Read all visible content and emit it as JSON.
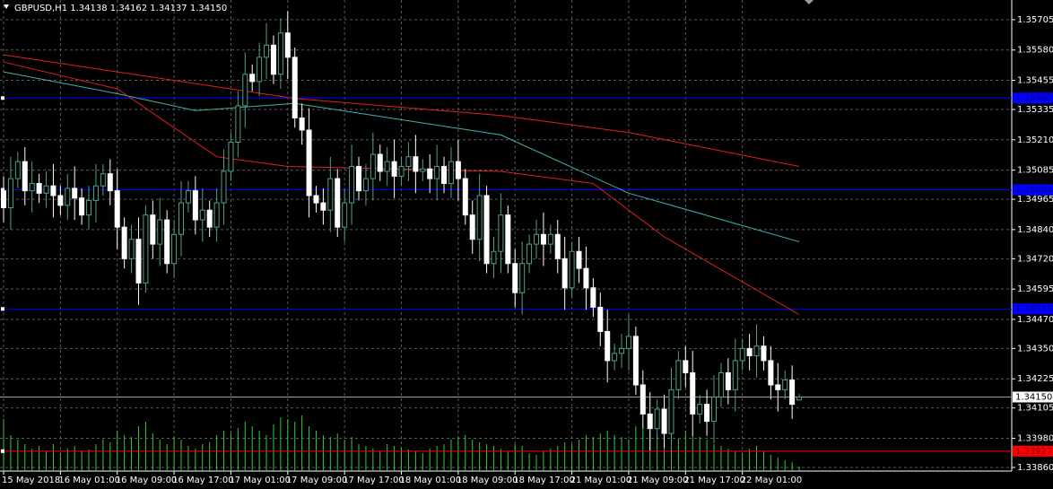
{
  "chart_data": {
    "type": "candlestick",
    "title": "GBPUSD,H1  1.34138 1.34162 1.34137 1.34150",
    "ylim": [
      1.33845,
      1.35786
    ],
    "yticks": [
      1.35705,
      {
        "value": 1.3558,
        "label": "1.35580"
      },
      1.35455,
      1.35335,
      {
        "value": 1.3521,
        "label": "1.35210"
      },
      1.35085,
      1.34965,
      {
        "value": 1.3484,
        "label": "1.34840"
      },
      {
        "value": 1.3472,
        "label": "1.34720"
      },
      1.34595,
      {
        "value": 1.3447,
        "label": "1.34470"
      },
      {
        "value": 1.3435,
        "label": "1.34350"
      },
      1.34225,
      1.34105,
      {
        "value": 1.3398,
        "label": "1.33980"
      },
      {
        "value": 1.3386,
        "label": "1.33860"
      }
    ],
    "xticks": [
      {
        "value": 0,
        "label": "15 May 2018"
      },
      {
        "value": 8,
        "label": "16 May 01:00"
      },
      {
        "value": 16,
        "label": "16 May 09:00"
      },
      {
        "value": 24,
        "label": "16 May 17:00"
      },
      {
        "value": 32,
        "label": "17 May 01:00"
      },
      {
        "value": 40,
        "label": "17 May 09:00"
      },
      {
        "value": 48,
        "label": "17 May 17:00"
      },
      {
        "value": 56,
        "label": "18 May 01:00"
      },
      {
        "value": 64,
        "label": "18 May 09:00"
      },
      {
        "value": 72,
        "label": "18 May 17:00"
      },
      {
        "value": 80,
        "label": "21 May 01:00"
      },
      {
        "value": 88,
        "label": "21 May 09:00"
      },
      {
        "value": 96,
        "label": "21 May 17:00"
      },
      {
        "value": 104,
        "label": "22 May 01:00"
      }
    ],
    "grid": true,
    "bull_color": "#4fa08a",
    "bear_color": "#ffffff",
    "volume_color": "#32cd32",
    "candles": [
      [
        1.35,
        1.3506,
        1.3487,
        1.3493
      ],
      [
        1.3493,
        1.3514,
        1.3484,
        1.3505
      ],
      [
        1.3505,
        1.3516,
        1.3501,
        1.3512
      ],
      [
        1.3512,
        1.3518,
        1.3494,
        1.35
      ],
      [
        1.35,
        1.3512,
        1.3491,
        1.3503
      ],
      [
        1.3503,
        1.3507,
        1.3495,
        1.3499
      ],
      [
        1.3499,
        1.3508,
        1.3493,
        1.3502
      ],
      [
        1.3502,
        1.3511,
        1.3489,
        1.3498
      ],
      [
        1.3498,
        1.3502,
        1.349,
        1.3494
      ],
      [
        1.3494,
        1.3507,
        1.3488,
        1.3501
      ],
      [
        1.3501,
        1.351,
        1.3488,
        1.3497
      ],
      [
        1.3497,
        1.3501,
        1.3486,
        1.349
      ],
      [
        1.349,
        1.3502,
        1.3484,
        1.3496
      ],
      [
        1.3496,
        1.3511,
        1.3487,
        1.3502
      ],
      [
        1.3502,
        1.3511,
        1.3498,
        1.3507
      ],
      [
        1.3507,
        1.3513,
        1.3494,
        1.35
      ],
      [
        1.35,
        1.3509,
        1.3476,
        1.3485
      ],
      [
        1.3485,
        1.3489,
        1.3468,
        1.3472
      ],
      [
        1.3472,
        1.3486,
        1.3466,
        1.348
      ],
      [
        1.348,
        1.3489,
        1.3453,
        1.3462
      ],
      [
        1.3462,
        1.3494,
        1.3458,
        1.349
      ],
      [
        1.349,
        1.3496,
        1.3472,
        1.3478
      ],
      [
        1.3478,
        1.3497,
        1.3469,
        1.3488
      ],
      [
        1.3488,
        1.3492,
        1.3466,
        1.347
      ],
      [
        1.347,
        1.3488,
        1.3464,
        1.3482
      ],
      [
        1.3482,
        1.3504,
        1.3473,
        1.3495
      ],
      [
        1.3495,
        1.3504,
        1.3491,
        1.35
      ],
      [
        1.35,
        1.3506,
        1.3482,
        1.3488
      ],
      [
        1.3488,
        1.3501,
        1.3479,
        1.3492
      ],
      [
        1.3492,
        1.3496,
        1.3481,
        1.3485
      ],
      [
        1.3485,
        1.3501,
        1.3479,
        1.3495
      ],
      [
        1.3495,
        1.3517,
        1.3486,
        1.3508
      ],
      [
        1.3508,
        1.3524,
        1.3504,
        1.352
      ],
      [
        1.352,
        1.3541,
        1.3514,
        1.3535
      ],
      [
        1.3535,
        1.3557,
        1.3526,
        1.3548
      ],
      [
        1.3548,
        1.3552,
        1.3541,
        1.3545
      ],
      [
        1.3545,
        1.3561,
        1.3539,
        1.3555
      ],
      [
        1.3555,
        1.3569,
        1.3546,
        1.356
      ],
      [
        1.356,
        1.3564,
        1.3544,
        1.3548
      ],
      [
        1.3548,
        1.3571,
        1.3542,
        1.3565
      ],
      [
        1.3565,
        1.3574,
        1.3546,
        1.3555
      ],
      [
        1.3555,
        1.3559,
        1.3526,
        1.353
      ],
      [
        1.353,
        1.3536,
        1.3519,
        1.3525
      ],
      [
        1.3525,
        1.3534,
        1.3489,
        1.3498
      ],
      [
        1.3498,
        1.3502,
        1.3491,
        1.3495
      ],
      [
        1.3495,
        1.3501,
        1.3486,
        1.3492
      ],
      [
        1.3492,
        1.3514,
        1.3483,
        1.3505
      ],
      [
        1.3505,
        1.3509,
        1.3481,
        1.3485
      ],
      [
        1.3485,
        1.3501,
        1.3479,
        1.3495
      ],
      [
        1.3495,
        1.3519,
        1.3486,
        1.351
      ],
      [
        1.351,
        1.3514,
        1.3496,
        1.35
      ],
      [
        1.35,
        1.3511,
        1.3494,
        1.3505
      ],
      [
        1.3505,
        1.3524,
        1.3496,
        1.3515
      ],
      [
        1.3515,
        1.3519,
        1.3504,
        1.3508
      ],
      [
        1.3508,
        1.3518,
        1.3502,
        1.3512
      ],
      [
        1.3512,
        1.3521,
        1.3497,
        1.3506
      ],
      [
        1.3506,
        1.3514,
        1.3502,
        1.351
      ],
      [
        1.351,
        1.352,
        1.3504,
        1.3514
      ],
      [
        1.3514,
        1.3523,
        1.3499,
        1.3508
      ],
      [
        1.3508,
        1.3513,
        1.3504,
        1.3509
      ],
      [
        1.3509,
        1.3515,
        1.3499,
        1.3505
      ],
      [
        1.3505,
        1.3519,
        1.3496,
        1.351
      ],
      [
        1.351,
        1.3514,
        1.3499,
        1.3503
      ],
      [
        1.3503,
        1.3518,
        1.3497,
        1.3512
      ],
      [
        1.3512,
        1.3521,
        1.3496,
        1.3505
      ],
      [
        1.3505,
        1.3509,
        1.3486,
        1.349
      ],
      [
        1.349,
        1.3496,
        1.3474,
        1.348
      ],
      [
        1.348,
        1.3507,
        1.3471,
        1.3498
      ],
      [
        1.3498,
        1.3502,
        1.3466,
        1.347
      ],
      [
        1.347,
        1.3481,
        1.3464,
        1.3475
      ],
      [
        1.3475,
        1.3499,
        1.3466,
        1.349
      ],
      [
        1.349,
        1.3494,
        1.3466,
        1.347
      ],
      [
        1.347,
        1.3476,
        1.3452,
        1.3458
      ],
      [
        1.3458,
        1.3479,
        1.3449,
        1.347
      ],
      [
        1.347,
        1.3482,
        1.3466,
        1.3478
      ],
      [
        1.3478,
        1.3488,
        1.3472,
        1.3482
      ],
      [
        1.3482,
        1.3491,
        1.3469,
        1.3478
      ],
      [
        1.3478,
        1.3486,
        1.3474,
        1.3482
      ],
      [
        1.3482,
        1.3488,
        1.3466,
        1.3472
      ],
      [
        1.3472,
        1.3481,
        1.3451,
        1.346
      ],
      [
        1.346,
        1.3479,
        1.3456,
        1.3475
      ],
      [
        1.3475,
        1.3481,
        1.3462,
        1.3468
      ],
      [
        1.3468,
        1.3477,
        1.3451,
        1.346
      ],
      [
        1.346,
        1.3464,
        1.3448,
        1.3452
      ],
      [
        1.3452,
        1.3458,
        1.3436,
        1.3442
      ],
      [
        1.3442,
        1.3451,
        1.3421,
        1.343
      ],
      [
        1.343,
        1.3437,
        1.3426,
        1.3433
      ],
      [
        1.3433,
        1.3441,
        1.3427,
        1.3435
      ],
      [
        1.3435,
        1.3449,
        1.3426,
        1.344
      ],
      [
        1.344,
        1.3444,
        1.3416,
        1.342
      ],
      [
        1.342,
        1.3426,
        1.3402,
        1.3408
      ],
      [
        1.3408,
        1.3417,
        1.3393,
        1.3402
      ],
      [
        1.3402,
        1.3414,
        1.3398,
        1.341
      ],
      [
        1.341,
        1.3416,
        1.3394,
        1.34
      ],
      [
        1.34,
        1.3427,
        1.3391,
        1.3418
      ],
      [
        1.3418,
        1.3434,
        1.3414,
        1.343
      ],
      [
        1.343,
        1.3436,
        1.3419,
        1.3425
      ],
      [
        1.3425,
        1.3434,
        1.3399,
        1.3408
      ],
      [
        1.3408,
        1.3416,
        1.3404,
        1.3412
      ],
      [
        1.3412,
        1.3418,
        1.3399,
        1.3405
      ],
      [
        1.3405,
        1.3424,
        1.3396,
        1.3415
      ],
      [
        1.3415,
        1.3429,
        1.3411,
        1.3425
      ],
      [
        1.3425,
        1.3431,
        1.3412,
        1.3418
      ],
      [
        1.3418,
        1.3439,
        1.3409,
        1.343
      ],
      [
        1.343,
        1.3439,
        1.3426,
        1.3435
      ],
      [
        1.3435,
        1.3441,
        1.3426,
        1.3432
      ],
      [
        1.3432,
        1.3445,
        1.3423,
        1.3436
      ],
      [
        1.3436,
        1.344,
        1.3426,
        1.343
      ],
      [
        1.343,
        1.3436,
        1.3414,
        1.342
      ],
      [
        1.342,
        1.3429,
        1.3409,
        1.3418
      ],
      [
        1.3418,
        1.3426,
        1.3414,
        1.3422
      ],
      [
        1.3422,
        1.3428,
        1.3406,
        1.3412
      ],
      [
        1.34138,
        1.34162,
        1.34137,
        1.3415
      ]
    ],
    "volume": [
      58,
      40,
      35,
      30,
      25,
      28,
      22,
      30,
      20,
      25,
      28,
      22,
      24,
      30,
      35,
      32,
      45,
      40,
      38,
      50,
      55,
      42,
      35,
      30,
      38,
      35,
      28,
      25,
      30,
      32,
      40,
      45,
      42,
      48,
      55,
      50,
      45,
      40,
      52,
      60,
      58,
      55,
      62,
      50,
      45,
      40,
      38,
      42,
      35,
      38,
      30,
      28,
      25,
      22,
      30,
      28,
      26,
      24,
      22,
      20,
      25,
      28,
      30,
      35,
      38,
      40,
      35,
      32,
      30,
      28,
      25,
      22,
      30,
      28,
      20,
      18,
      22,
      25,
      28,
      32,
      30,
      35,
      40,
      38,
      42,
      45,
      40,
      38,
      35,
      50,
      48,
      45,
      40,
      38,
      42,
      36,
      45,
      40,
      38,
      35,
      30,
      28,
      25,
      22,
      20,
      25,
      28,
      22,
      18,
      15,
      12,
      10,
      5
    ],
    "ma_lines": [
      {
        "color": "#e02020",
        "x": [
          0,
          16,
          41,
          70,
          88,
          112
        ],
        "values": [
          1.3556,
          1.3549,
          1.3538,
          1.3531,
          1.3524,
          1.351
        ]
      },
      {
        "color": "#40b0b0",
        "x": [
          0,
          16,
          27,
          41,
          70,
          88,
          112
        ],
        "values": [
          1.3549,
          1.354,
          1.3533,
          1.3536,
          1.3523,
          1.3499,
          1.3479
        ]
      },
      {
        "color": "#e02020",
        "x": [
          0,
          16,
          30,
          40,
          70,
          83,
          93,
          112
        ],
        "values": [
          1.3553,
          1.3542,
          1.3514,
          1.351,
          1.3508,
          1.3503,
          1.3481,
          1.3449
        ]
      }
    ],
    "levels": [
      {
        "value": 1.35382,
        "color": "#0000ff",
        "text_color": "#000080"
      },
      {
        "value": 1.35004,
        "color": "#0000ff",
        "text_color": "#000080"
      },
      {
        "value": 1.34513,
        "color": "#0000ff",
        "text_color": "#000080"
      },
      {
        "value": 1.33927,
        "color": "#ff0000",
        "text_color": "#800000"
      }
    ],
    "current_price": {
      "value": 1.3415,
      "label": "1.34150"
    }
  }
}
